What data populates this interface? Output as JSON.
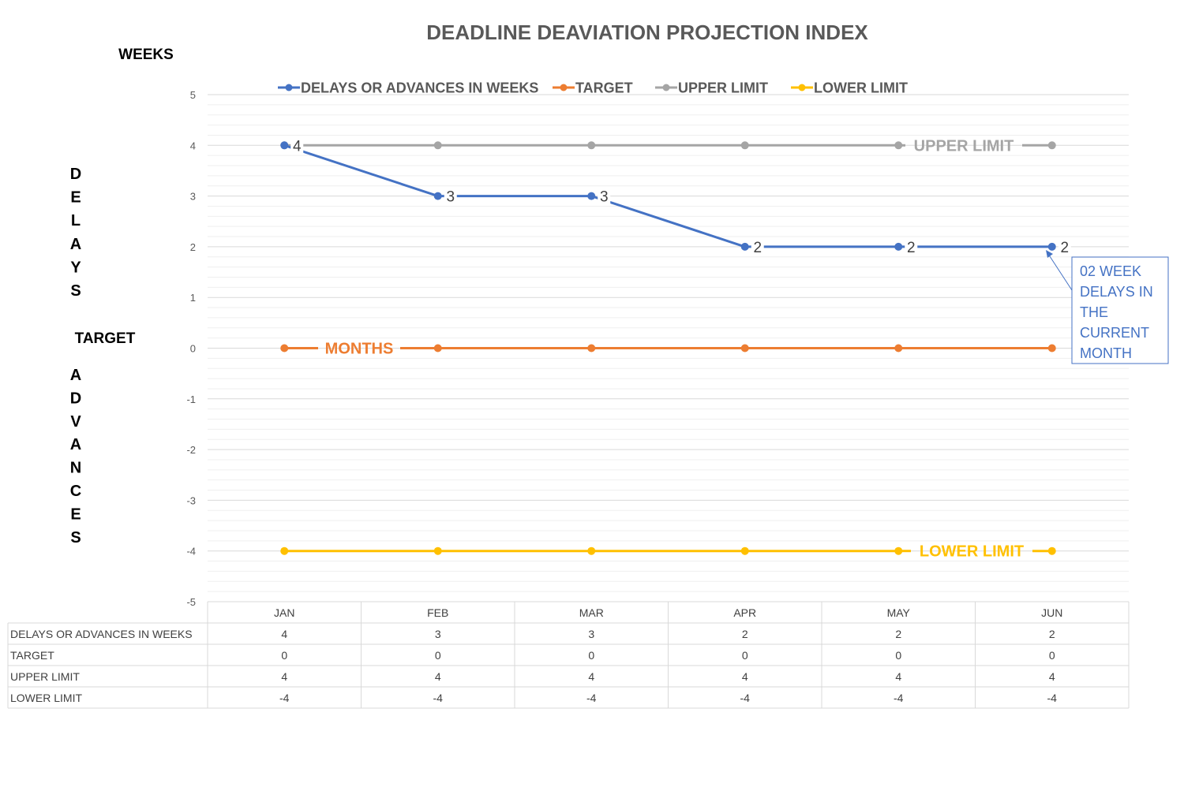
{
  "chart_data": {
    "type": "line",
    "title": "DEADLINE DEAVIATION PROJECTION INDEX",
    "units_label": "WEEKS",
    "ylabel_top": "DELAYS",
    "ylabel_middle": "TARGET",
    "ylabel_bottom": "ADVANCES",
    "ylim": [
      -5,
      5
    ],
    "yticks": [
      "5",
      "4",
      "3",
      "2",
      "1",
      "0",
      "-1",
      "-2",
      "-3",
      "-4",
      "-5"
    ],
    "categories": [
      "JAN",
      "FEB",
      "MAR",
      "APR",
      "MAY",
      "JUN"
    ],
    "grid": true,
    "legend_position": "top",
    "series": [
      {
        "name": "DELAYS OR ADVANCES IN WEEKS",
        "color": "#4472C4",
        "values": [
          4,
          3,
          3,
          2,
          2,
          2
        ],
        "data_labels": true
      },
      {
        "name": "TARGET",
        "color": "#ED7D31",
        "values": [
          0,
          0,
          0,
          0,
          0,
          0
        ],
        "series_label": "MONTHS"
      },
      {
        "name": "UPPER LIMIT",
        "color": "#A5A5A5",
        "values": [
          4,
          4,
          4,
          4,
          4,
          4
        ],
        "series_label": "UPPER LIMIT"
      },
      {
        "name": "LOWER LIMIT",
        "color": "#FFC000",
        "values": [
          -4,
          -4,
          -4,
          -4,
          -4,
          -4
        ],
        "series_label": "LOWER LIMIT"
      }
    ],
    "annotation": {
      "lines": [
        "02 WEEK",
        "DELAYS IN",
        "THE",
        "CURRENT",
        "MONTH"
      ],
      "color": "#4472C4"
    },
    "data_table": {
      "rows": [
        {
          "label": "DELAYS OR ADVANCES IN WEEKS",
          "values": [
            "4",
            "3",
            "3",
            "2",
            "2",
            "2"
          ]
        },
        {
          "label": "TARGET",
          "values": [
            "0",
            "0",
            "0",
            "0",
            "0",
            "0"
          ]
        },
        {
          "label": "UPPER LIMIT",
          "values": [
            "4",
            "4",
            "4",
            "4",
            "4",
            "4"
          ]
        },
        {
          "label": "LOWER LIMIT",
          "values": [
            "-4",
            "-4",
            "-4",
            "-4",
            "-4",
            "-4"
          ]
        }
      ]
    }
  }
}
